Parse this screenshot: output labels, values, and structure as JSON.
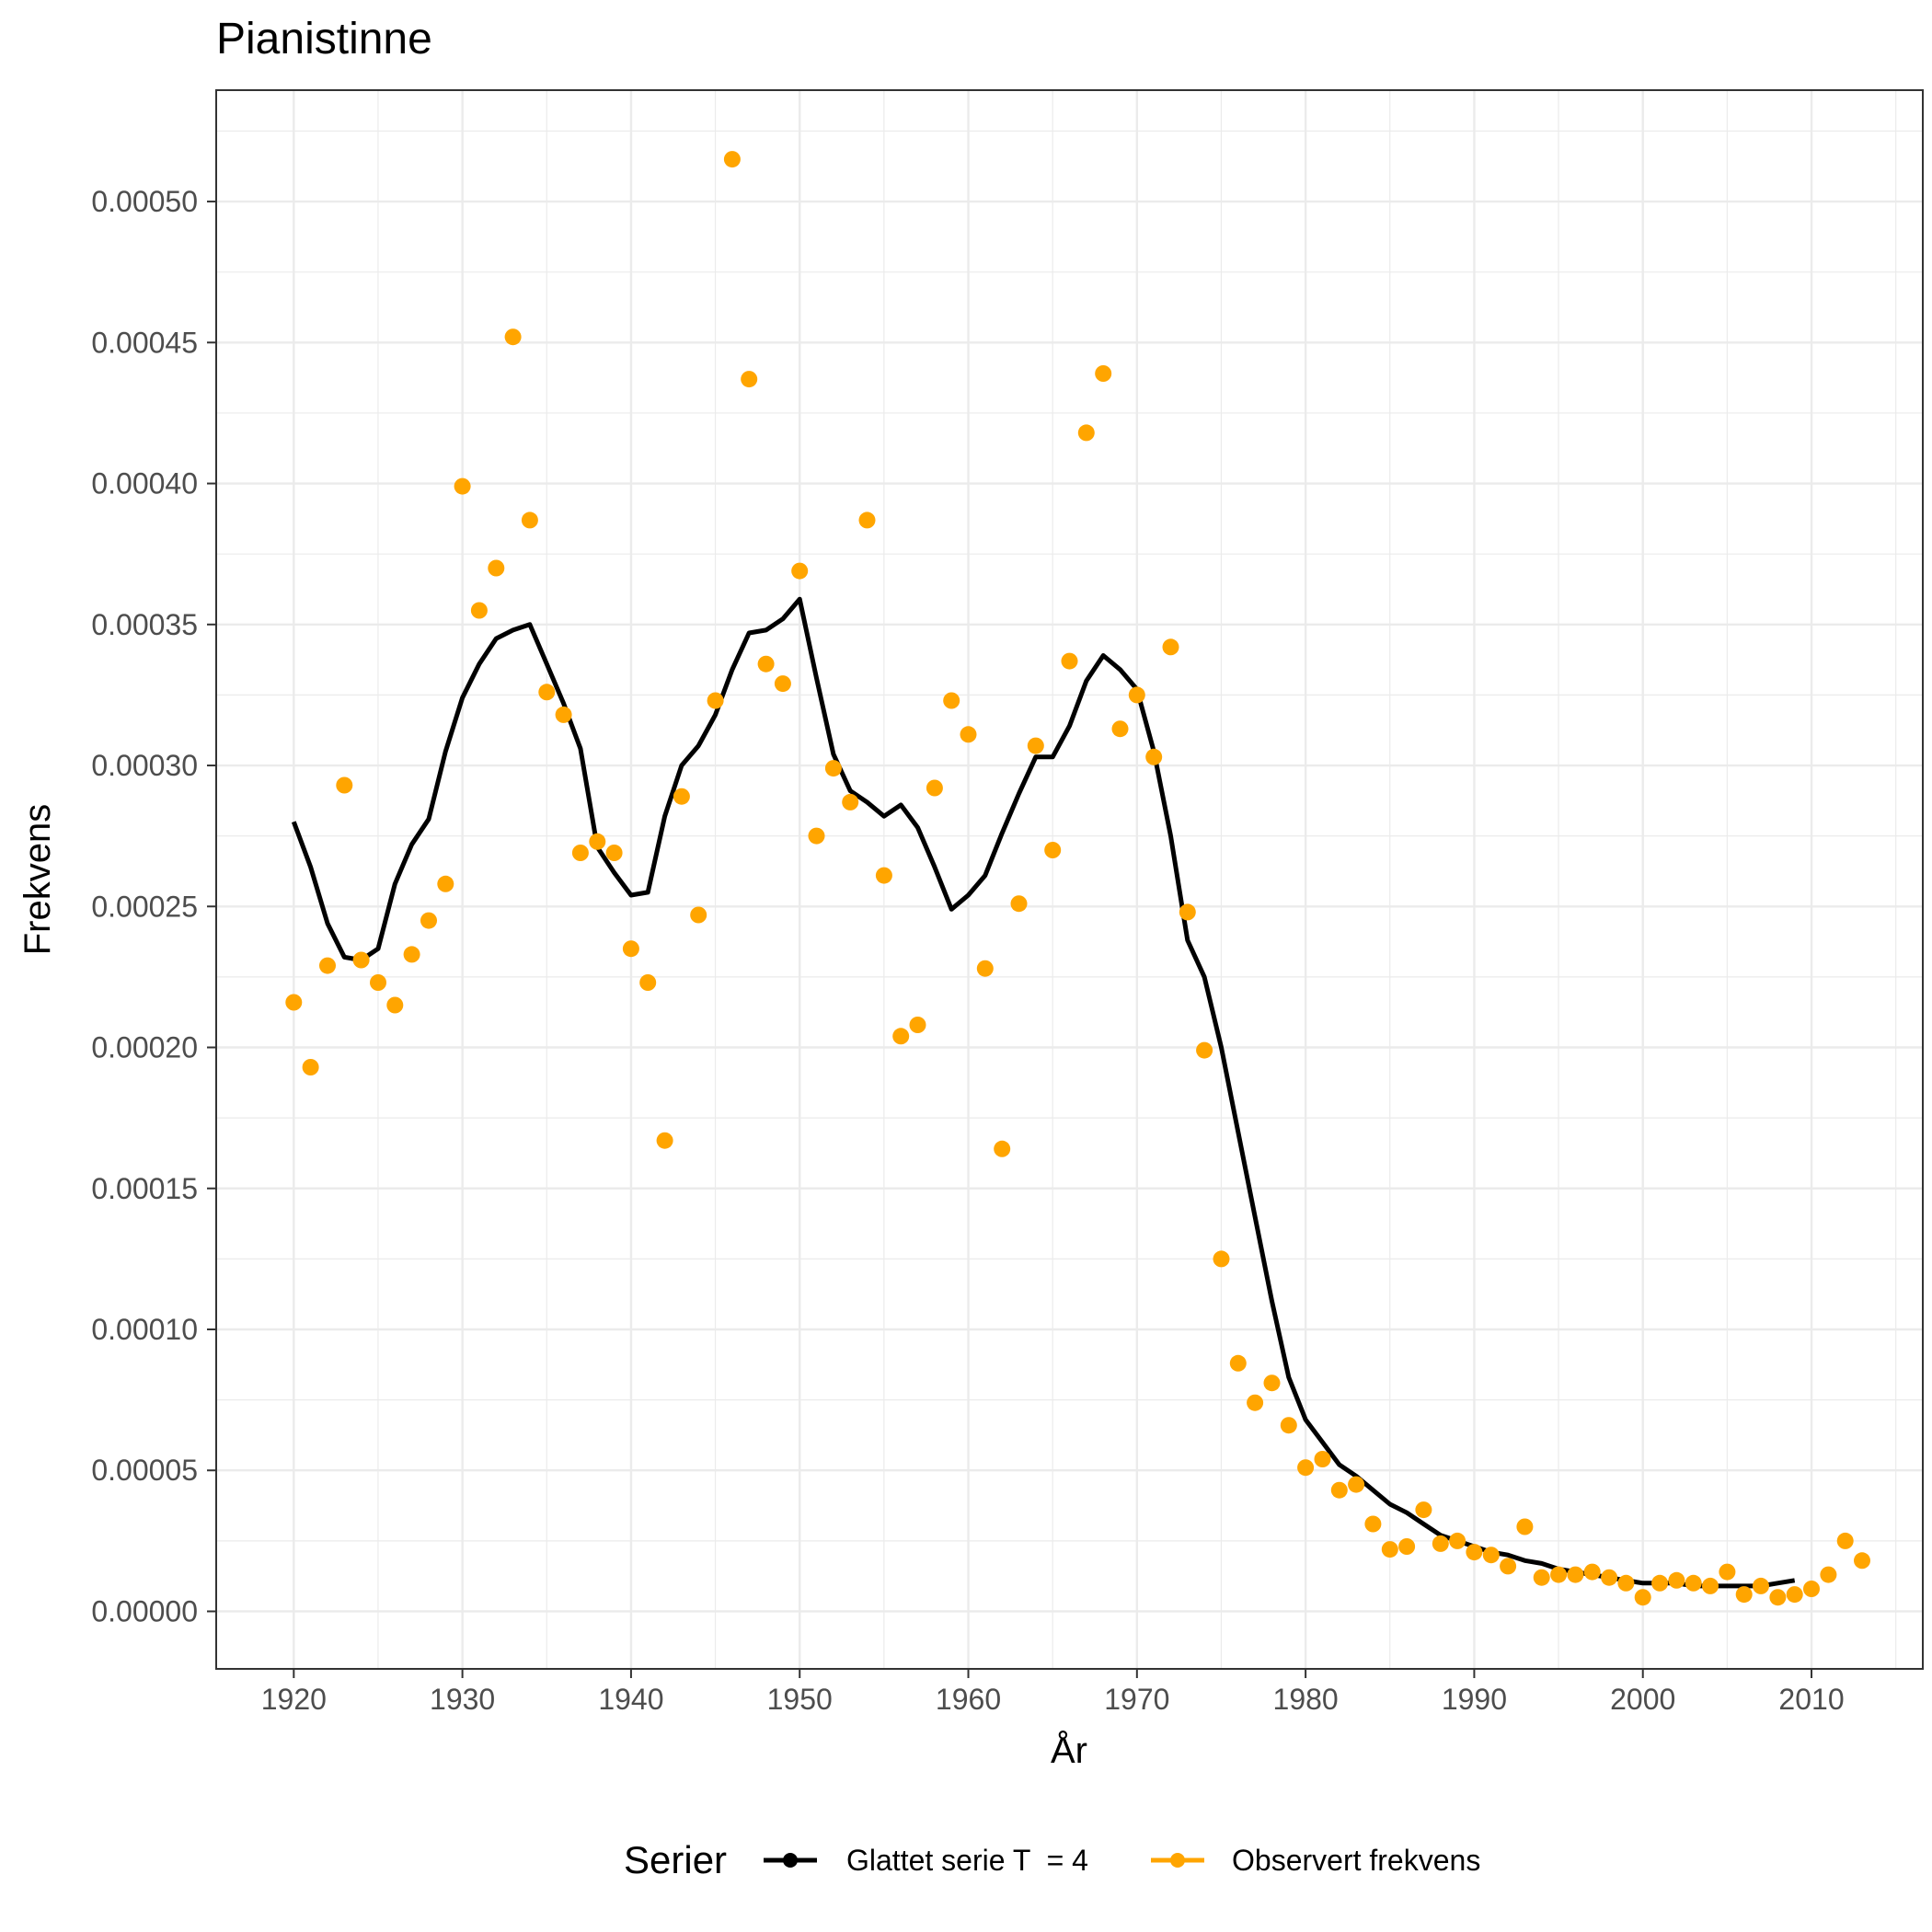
{
  "chart_data": {
    "type": "line",
    "title": "Pianistinne",
    "xlabel": "År",
    "ylabel": "Frekvens",
    "xlim": [
      1915.4,
      2016.6
    ],
    "ylim": [
      -2.04e-05,
      0.0005395
    ],
    "x_ticks": [
      1920,
      1930,
      1940,
      1950,
      1960,
      1970,
      1980,
      1990,
      2000,
      2010
    ],
    "x_tick_labels": [
      "1920",
      "1930",
      "1940",
      "1950",
      "1960",
      "1970",
      "1980",
      "1990",
      "2000",
      "2010"
    ],
    "y_ticks": [
      0,
      5e-05,
      0.0001,
      0.00015,
      0.0002,
      0.00025,
      0.0003,
      0.00035,
      0.0004,
      0.00045,
      0.0005
    ],
    "y_tick_labels": [
      "0.00000",
      "0.00005",
      "0.00010",
      "0.00015",
      "0.00020",
      "0.00025",
      "0.00030",
      "0.00035",
      "0.00040",
      "0.00045",
      "0.00050"
    ],
    "grid": true,
    "legend": {
      "title": "Serier",
      "position": "bottom",
      "entries": [
        "Glattet serie T  = 4",
        "Observert frekvens"
      ]
    },
    "series": [
      {
        "name": "Glattet serie T  = 4",
        "kind": "line",
        "color": "#000000",
        "x": [
          1920,
          1921,
          1922,
          1923,
          1924,
          1925,
          1926,
          1927,
          1928,
          1929,
          1930,
          1931,
          1932,
          1933,
          1934,
          1935,
          1936,
          1937,
          1938,
          1939,
          1940,
          1941,
          1942,
          1943,
          1944,
          1945,
          1946,
          1947,
          1948,
          1949,
          1950,
          1951,
          1952,
          1953,
          1954,
          1955,
          1956,
          1957,
          1958,
          1959,
          1960,
          1961,
          1962,
          1963,
          1964,
          1965,
          1966,
          1967,
          1968,
          1969,
          1970,
          1971,
          1972,
          1973,
          1974,
          1975,
          1976,
          1977,
          1978,
          1979,
          1980,
          1981,
          1982,
          1983,
          1984,
          1985,
          1986,
          1987,
          1988,
          1989,
          1990,
          1991,
          1992,
          1993,
          1994,
          1995,
          1996,
          1997,
          1998,
          1999,
          2000,
          2001,
          2002,
          2003,
          2004,
          2005,
          2006,
          2007,
          2008,
          2009
        ],
        "y": [
          0.00028,
          0.000264,
          0.000244,
          0.000232,
          0.000231,
          0.000235,
          0.000258,
          0.000272,
          0.000281,
          0.000305,
          0.000324,
          0.000336,
          0.000345,
          0.000348,
          0.00035,
          0.000336,
          0.000322,
          0.000306,
          0.000271,
          0.000262,
          0.000254,
          0.000255,
          0.000282,
          0.0003,
          0.000307,
          0.000318,
          0.000334,
          0.000347,
          0.000348,
          0.000352,
          0.000359,
          0.000331,
          0.000304,
          0.000291,
          0.000287,
          0.000282,
          0.000286,
          0.000278,
          0.000264,
          0.000249,
          0.000254,
          0.000261,
          0.000276,
          0.00029,
          0.000303,
          0.000303,
          0.000314,
          0.00033,
          0.000339,
          0.000334,
          0.000327,
          0.000305,
          0.000275,
          0.000238,
          0.000225,
          0.0002,
          0.00017,
          0.00014,
          0.00011,
          8.3e-05,
          6.8e-05,
          6e-05,
          5.2e-05,
          4.8e-05,
          4.3e-05,
          3.8e-05,
          3.5e-05,
          3.1e-05,
          2.7e-05,
          2.5e-05,
          2.3e-05,
          2.1e-05,
          2e-05,
          1.8e-05,
          1.7e-05,
          1.5e-05,
          1.4e-05,
          1.3e-05,
          1.2e-05,
          1.1e-05,
          1e-05,
          1e-05,
          1e-05,
          9e-06,
          9e-06,
          9e-06,
          9e-06,
          9e-06,
          1e-05,
          1.1e-05
        ]
      },
      {
        "name": "Observert frekvens",
        "kind": "scatter",
        "color": "#FFA500",
        "x": [
          1920,
          1921,
          1922,
          1923,
          1924,
          1925,
          1926,
          1927,
          1928,
          1929,
          1930,
          1931,
          1932,
          1933,
          1934,
          1935,
          1936,
          1937,
          1938,
          1939,
          1940,
          1941,
          1942,
          1943,
          1944,
          1945,
          1946,
          1947,
          1948,
          1949,
          1950,
          1951,
          1952,
          1953,
          1954,
          1955,
          1956,
          1957,
          1958,
          1959,
          1960,
          1961,
          1962,
          1963,
          1964,
          1965,
          1966,
          1967,
          1968,
          1969,
          1970,
          1971,
          1972,
          1973,
          1974,
          1975,
          1976,
          1977,
          1978,
          1979,
          1980,
          1981,
          1982,
          1983,
          1984,
          1985,
          1986,
          1987,
          1988,
          1989,
          1990,
          1991,
          1992,
          1993,
          1994,
          1995,
          1996,
          1997,
          1998,
          1999,
          2000,
          2001,
          2002,
          2003,
          2004,
          2005,
          2006,
          2007,
          2008,
          2009,
          2010,
          2011,
          2012,
          2013
        ],
        "y": [
          0.000216,
          0.000193,
          0.000229,
          0.000293,
          0.000231,
          0.000223,
          0.000215,
          0.000233,
          0.000245,
          0.000258,
          0.000399,
          0.000355,
          0.00037,
          0.000452,
          0.000387,
          0.000326,
          0.000318,
          0.000269,
          0.000273,
          0.000269,
          0.000235,
          0.000223,
          0.000167,
          0.000289,
          0.000247,
          0.000323,
          0.000515,
          0.000437,
          0.000336,
          0.000329,
          0.000369,
          0.000275,
          0.000299,
          0.000287,
          0.000387,
          0.000261,
          0.000204,
          0.000208,
          0.000292,
          0.000323,
          0.000311,
          0.000228,
          0.000164,
          0.000251,
          0.000307,
          0.00027,
          0.000337,
          0.000418,
          0.000439,
          0.000313,
          0.000325,
          0.000303,
          0.000342,
          0.000248,
          0.000199,
          0.000125,
          8.8e-05,
          7.4e-05,
          8.1e-05,
          6.6e-05,
          5.1e-05,
          5.4e-05,
          4.3e-05,
          4.5e-05,
          3.1e-05,
          2.2e-05,
          2.3e-05,
          3.6e-05,
          2.4e-05,
          2.5e-05,
          2.1e-05,
          2e-05,
          1.6e-05,
          3e-05,
          1.2e-05,
          1.3e-05,
          1.3e-05,
          1.4e-05,
          1.2e-05,
          1e-05,
          5e-06,
          1e-05,
          1.1e-05,
          1e-05,
          9e-06,
          1.4e-05,
          6e-06,
          9e-06,
          5e-06,
          6e-06,
          8e-06,
          1.3e-05,
          2.5e-05,
          1.8e-05
        ]
      }
    ]
  }
}
